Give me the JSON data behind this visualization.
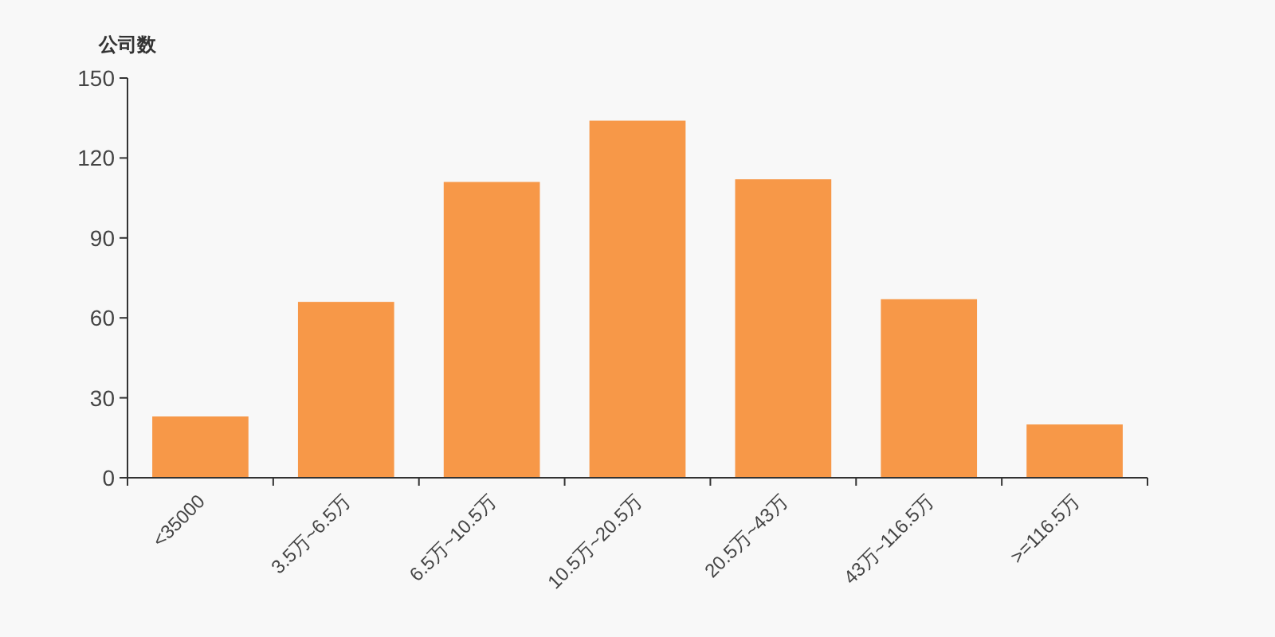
{
  "chart_data": {
    "type": "bar",
    "ylabel": "公司数",
    "categories": [
      "<35000",
      "3.5万~6.5万",
      "6.5万~10.5万",
      "10.5万~20.5万",
      "20.5万~43万",
      "43万~116.5万",
      ">=116.5万"
    ],
    "values": [
      23,
      66,
      111,
      134,
      112,
      67,
      20
    ],
    "color": "#f79848",
    "ylim": [
      0,
      150
    ],
    "yticks": [
      0,
      30,
      60,
      90,
      120,
      150
    ],
    "grid": false
  }
}
